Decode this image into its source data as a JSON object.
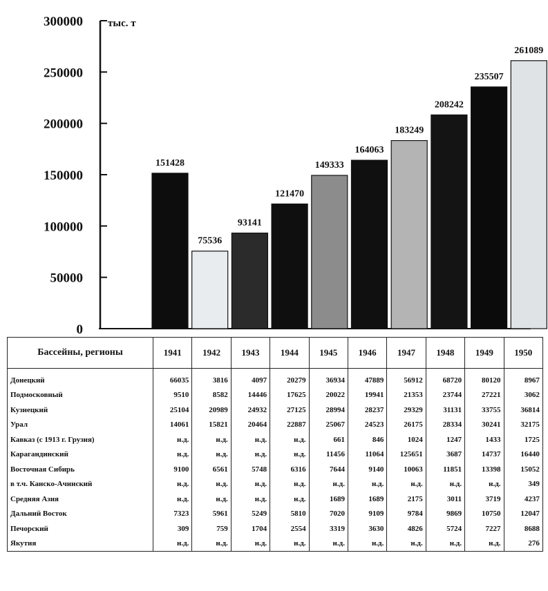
{
  "chart_data": {
    "type": "bar",
    "title": "",
    "ylabel": "тыс. т",
    "xlabel": "",
    "ylim": [
      0,
      300000
    ],
    "yticks": [
      0,
      50000,
      100000,
      150000,
      200000,
      250000,
      300000
    ],
    "categories": [
      "1941",
      "1942",
      "1943",
      "1944",
      "1945",
      "1946",
      "1947",
      "1948",
      "1949",
      "1950"
    ],
    "values": [
      151428,
      75536,
      93141,
      121470,
      149333,
      164063,
      183249,
      208242,
      235507,
      261089
    ],
    "bar_fill_colors": [
      "#0d0d0d",
      "#e9ecef",
      "#2b2b2b",
      "#0f0f0f",
      "#8c8c8c",
      "#101010",
      "#b4b4b4",
      "#141414",
      "#0b0b0b",
      "#dfe3e6"
    ],
    "grid": false,
    "legend": "none"
  },
  "table": {
    "header": {
      "region": "Бассейны, регионы",
      "years": [
        "1941",
        "1942",
        "1943",
        "1944",
        "1945",
        "1946",
        "1947",
        "1948",
        "1949",
        "1950"
      ]
    },
    "rows": [
      {
        "region": "Донецкий",
        "values": [
          "66035",
          "3816",
          "4097",
          "20279",
          "36934",
          "47889",
          "56912",
          "68720",
          "80120",
          "8967"
        ]
      },
      {
        "region": "Подмосковный",
        "values": [
          "9510",
          "8582",
          "14446",
          "17625",
          "20022",
          "19941",
          "21353",
          "23744",
          "27221",
          "3062"
        ]
      },
      {
        "region": "Кузнецкий",
        "values": [
          "25104",
          "20989",
          "24932",
          "27125",
          "28994",
          "28237",
          "29329",
          "31131",
          "33755",
          "36814"
        ]
      },
      {
        "region": "Урал",
        "values": [
          "14061",
          "15821",
          "20464",
          "22887",
          "25067",
          "24523",
          "26175",
          "28334",
          "30241",
          "32175"
        ]
      },
      {
        "region": "Кавказ (с 1913 г. Грузия)",
        "values": [
          "н.д.",
          "н.д.",
          "н.д.",
          "н.д.",
          "661",
          "846",
          "1024",
          "1247",
          "1433",
          "1725"
        ]
      },
      {
        "region": "Карагандинский",
        "values": [
          "н.д.",
          "н.д.",
          "н.д.",
          "н.д.",
          "11456",
          "11064",
          "125651",
          "3687",
          "14737",
          "16440"
        ]
      },
      {
        "region": "Восточная Сибирь",
        "values": [
          "9100",
          "6561",
          "5748",
          "6316",
          "7644",
          "9140",
          "10063",
          "11851",
          "13398",
          "15052"
        ]
      },
      {
        "region": "в т.ч. Канско-Ачинский",
        "values": [
          "н.д.",
          "н.д.",
          "н.д.",
          "н.д.",
          "н.д.",
          "н.д.",
          "н.д.",
          "н.д.",
          "н.д.",
          "349"
        ]
      },
      {
        "region": "Средняя Азия",
        "values": [
          "н.д.",
          "н.д.",
          "н.д.",
          "н.д.",
          "1689",
          "1689",
          "2175",
          "3011",
          "3719",
          "4237"
        ]
      },
      {
        "region": "Дальний Восток",
        "values": [
          "7323",
          "5961",
          "5249",
          "5810",
          "7020",
          "9109",
          "9784",
          "9869",
          "10750",
          "12047"
        ]
      },
      {
        "region": "Печорский",
        "values": [
          "309",
          "759",
          "1704",
          "2554",
          "3319",
          "3630",
          "4826",
          "5724",
          "7227",
          "8688"
        ]
      },
      {
        "region": "Якутия",
        "values": [
          "н.д.",
          "н.д.",
          "н.д.",
          "н.д.",
          "н.д.",
          "н.д.",
          "н.д.",
          "н.д.",
          "н.д.",
          "276"
        ]
      }
    ]
  }
}
